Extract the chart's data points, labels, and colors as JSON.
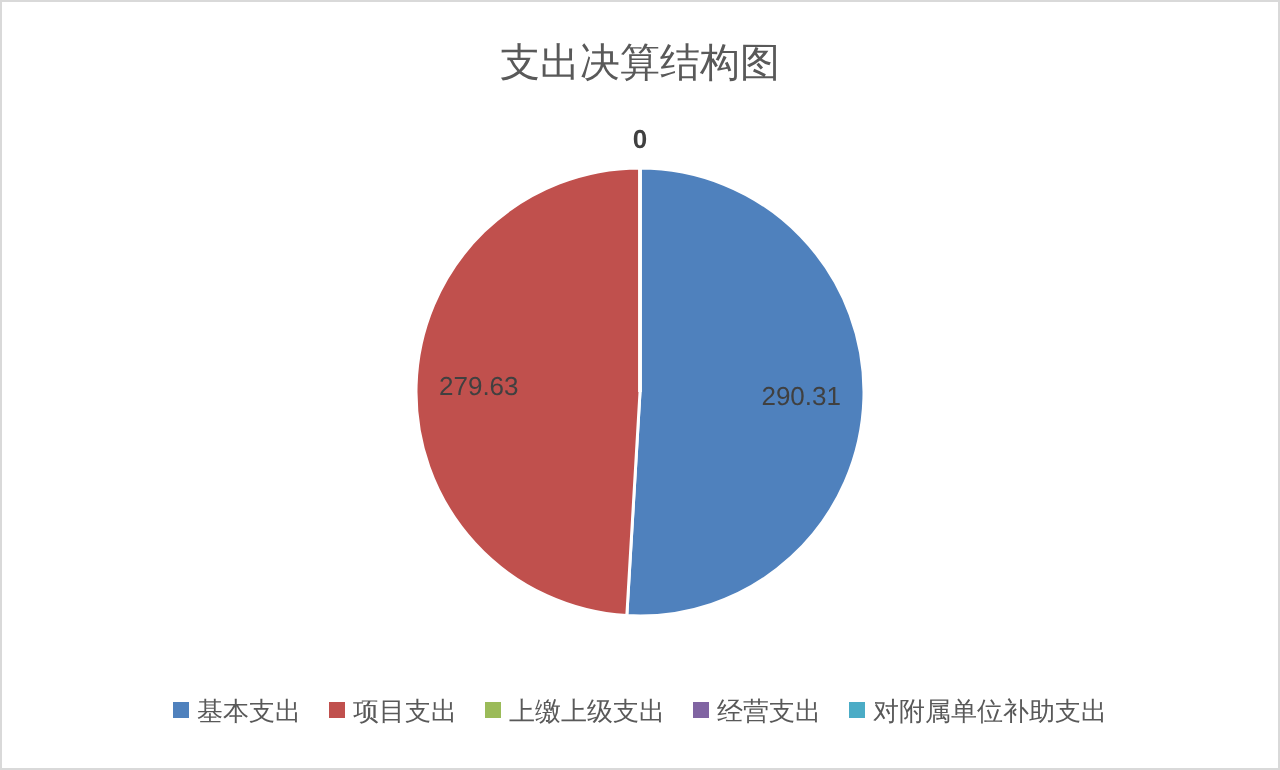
{
  "chart_data": {
    "type": "pie",
    "title": "支出决算结构图",
    "categories": [
      "基本支出",
      "项目支出",
      "上缴上级支出",
      "经营支出",
      "对附属单位补助支出"
    ],
    "values": [
      290.31,
      279.63,
      0,
      0,
      0
    ],
    "colors": [
      "#4f81bd",
      "#c0504d",
      "#9bbb59",
      "#8064a2",
      "#4bacc6"
    ],
    "value_labels": [
      "290.31",
      "279.63",
      "0",
      null,
      null
    ],
    "legend": "bottom"
  }
}
